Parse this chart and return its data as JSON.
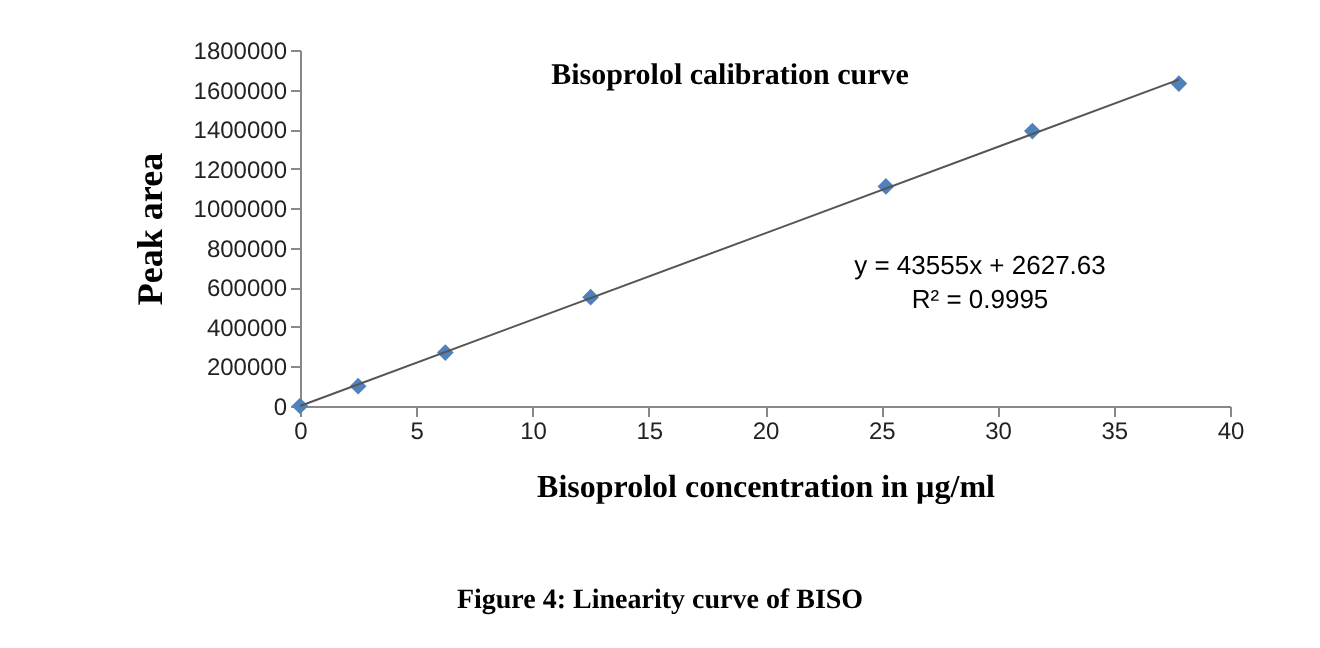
{
  "chart_data": {
    "type": "scatter",
    "title": "Bisoprolol calibration curve",
    "xlabel": "Bisoprolol concentration in µg/ml",
    "ylabel": "Peak area",
    "series": [
      {
        "color": "#4f81bd",
        "marker": "diamond",
        "x": [
          0,
          2.5,
          6.25,
          12.5,
          25.2,
          31.5,
          37.8
        ],
        "values": [
          0,
          100000,
          270000,
          550000,
          1110000,
          1390000,
          1630000
        ]
      },
      {
        "type": "line",
        "color": "#555555",
        "marker": "none",
        "line_style": "solid",
        "x": [
          0,
          37.8
        ],
        "values": [
          0,
          1650000
        ]
      }
    ],
    "xlim": [
      0,
      40
    ],
    "xticks": [
      0,
      5,
      10,
      15,
      20,
      25,
      30,
      35,
      40
    ],
    "ylim": [
      0,
      1800000
    ],
    "yticks": [
      0,
      200000,
      400000,
      600000,
      800000,
      1000000,
      1200000,
      1400000,
      1600000,
      1800000
    ],
    "grid": false,
    "annotations": [
      "y = 43555x + 2627.63",
      "R² = 0.9995",
      "Figure 4: Linearity curve of BISO"
    ]
  }
}
